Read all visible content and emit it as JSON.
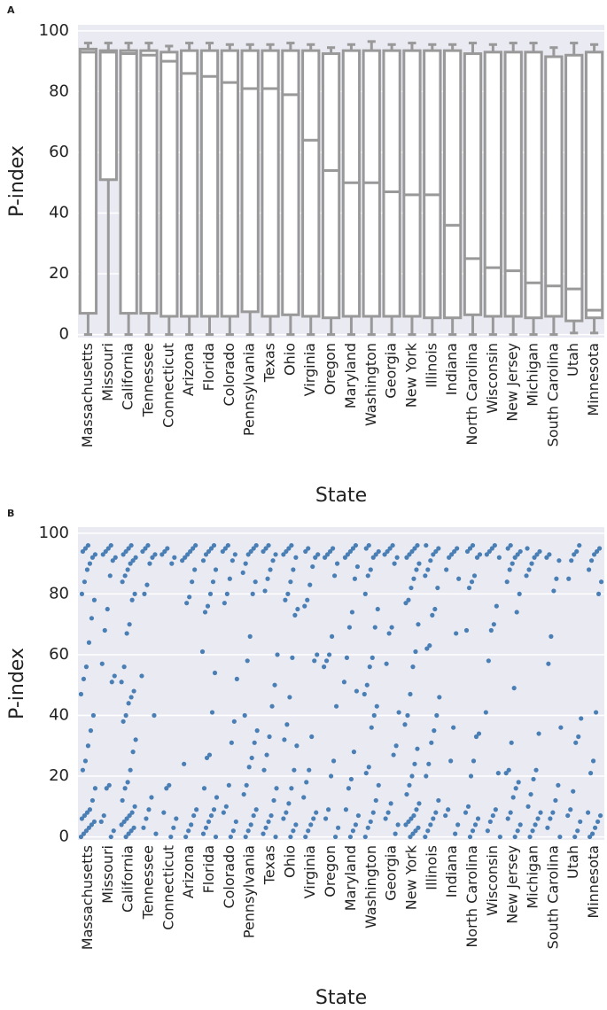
{
  "chart_data": [
    {
      "type": "box",
      "label": "A",
      "ylabel": "P-index",
      "xlabel": "State",
      "categories": [
        "Massachusetts",
        "Missouri",
        "California",
        "Tennessee",
        "Connecticut",
        "Arizona",
        "Florida",
        "Colorado",
        "Pennsylvania",
        "Texas",
        "Ohio",
        "Virginia",
        "Oregon",
        "Maryland",
        "Washington",
        "Georgia",
        "New York",
        "Illinois",
        "Indiana",
        "North Carolina",
        "Wisconsin",
        "New Jersey",
        "Michigan",
        "South Carolina",
        "Utah",
        "Minnesota"
      ],
      "boxes": [
        {
          "low": 0,
          "q1": 7,
          "median": 93,
          "q3": 94,
          "high": 96
        },
        {
          "low": 0,
          "q1": 51,
          "median": 93,
          "q3": 93.5,
          "high": 96
        },
        {
          "low": 0,
          "q1": 7,
          "median": 92.5,
          "q3": 93.5,
          "high": 96
        },
        {
          "low": 0,
          "q1": 7,
          "median": 92,
          "q3": 93.5,
          "high": 96
        },
        {
          "low": 0,
          "q1": 6,
          "median": 90,
          "q3": 93,
          "high": 95
        },
        {
          "low": 0,
          "q1": 6,
          "median": 86,
          "q3": 93.5,
          "high": 96
        },
        {
          "low": 0,
          "q1": 6,
          "median": 85,
          "q3": 93.5,
          "high": 96
        },
        {
          "low": 0,
          "q1": 6,
          "median": 83,
          "q3": 93.5,
          "high": 95.5
        },
        {
          "low": 0,
          "q1": 7.5,
          "median": 81,
          "q3": 93.5,
          "high": 95.5
        },
        {
          "low": 0,
          "q1": 6,
          "median": 81,
          "q3": 93.5,
          "high": 95.5
        },
        {
          "low": 0,
          "q1": 6.5,
          "median": 79,
          "q3": 93.5,
          "high": 96
        },
        {
          "low": 0,
          "q1": 6,
          "median": 64,
          "q3": 93.5,
          "high": 95.5
        },
        {
          "low": 0,
          "q1": 5.5,
          "median": 54,
          "q3": 92.5,
          "high": 94.5
        },
        {
          "low": 0,
          "q1": 6,
          "median": 50,
          "q3": 93.5,
          "high": 95.5
        },
        {
          "low": 0,
          "q1": 6,
          "median": 50,
          "q3": 93.5,
          "high": 96.5
        },
        {
          "low": 0,
          "q1": 6,
          "median": 47,
          "q3": 93.5,
          "high": 95.5
        },
        {
          "low": 0,
          "q1": 6,
          "median": 46,
          "q3": 93.5,
          "high": 96
        },
        {
          "low": 0,
          "q1": 5.5,
          "median": 46,
          "q3": 93.5,
          "high": 95.5
        },
        {
          "low": 0,
          "q1": 5.5,
          "median": 36,
          "q3": 93.5,
          "high": 95.5
        },
        {
          "low": 0,
          "q1": 6.5,
          "median": 25,
          "q3": 92.5,
          "high": 96
        },
        {
          "low": 0,
          "q1": 6,
          "median": 22,
          "q3": 93,
          "high": 95.5
        },
        {
          "low": 0,
          "q1": 6,
          "median": 21,
          "q3": 93,
          "high": 96
        },
        {
          "low": 0,
          "q1": 5.5,
          "median": 17,
          "q3": 93,
          "high": 96
        },
        {
          "low": 0,
          "q1": 6,
          "median": 16,
          "q3": 91.5,
          "high": 94.5
        },
        {
          "low": 0.5,
          "q1": 4.5,
          "median": 15,
          "q3": 92,
          "high": 96
        },
        {
          "low": 0.5,
          "q1": 5.5,
          "median": 8,
          "q3": 93,
          "high": 95.5
        }
      ],
      "ylim": [
        -1,
        102
      ],
      "yticks": [
        0,
        20,
        40,
        60,
        80,
        100
      ],
      "grid": true,
      "color": "#999999"
    },
    {
      "type": "strip",
      "label": "B",
      "ylabel": "P-index",
      "xlabel": "State",
      "categories": [
        "Massachusetts",
        "Missouri",
        "California",
        "Tennessee",
        "Connecticut",
        "Arizona",
        "Florida",
        "Colorado",
        "Pennsylvania",
        "Texas",
        "Ohio",
        "Virginia",
        "Oregon",
        "Maryland",
        "Washington",
        "Georgia",
        "New York",
        "Illinois",
        "Indiana",
        "North Carolina",
        "Wisconsin",
        "New Jersey",
        "Michigan",
        "South Carolina",
        "Utah",
        "Minnesota"
      ],
      "values": [
        [
          0,
          1,
          2,
          3,
          4,
          5,
          6,
          7,
          8,
          9,
          12,
          16,
          22,
          25,
          30,
          35,
          40,
          47,
          52,
          56,
          64,
          72,
          78,
          80,
          84,
          88,
          90,
          92,
          93,
          94,
          95,
          96
        ],
        [
          0,
          2,
          5,
          7,
          16,
          17,
          51,
          53,
          57,
          68,
          75,
          86,
          91,
          92,
          93,
          94,
          95,
          96
        ],
        [
          0,
          1,
          2,
          3,
          4,
          5,
          6,
          7,
          8,
          10,
          12,
          16,
          18,
          22,
          28,
          32,
          38,
          40,
          44,
          46,
          48,
          51,
          56,
          67,
          70,
          78,
          80,
          84,
          86,
          88,
          90,
          91,
          92,
          93,
          94,
          95,
          96
        ],
        [
          1,
          3,
          6,
          9,
          13,
          40,
          53,
          80,
          83,
          90,
          92,
          93,
          94,
          95,
          96
        ],
        [
          0,
          3,
          6,
          8,
          16,
          17,
          90,
          92,
          93,
          94,
          95
        ],
        [
          0,
          2,
          4,
          7,
          9,
          24,
          77,
          79,
          84,
          88,
          91,
          92,
          93,
          94,
          95,
          96
        ],
        [
          0,
          1,
          3,
          5,
          7,
          9,
          13,
          16,
          26,
          27,
          41,
          54,
          61,
          74,
          76,
          80,
          84,
          88,
          91,
          93,
          94,
          95,
          96
        ],
        [
          0,
          2,
          5,
          8,
          10,
          17,
          31,
          38,
          52,
          77,
          80,
          85,
          91,
          93,
          94,
          95,
          96
        ],
        [
          0,
          2,
          4,
          7,
          9,
          14,
          17,
          23,
          26,
          31,
          35,
          40,
          58,
          66,
          80,
          84,
          87,
          90,
          93,
          94,
          95,
          96
        ],
        [
          0,
          1,
          3,
          5,
          7,
          12,
          16,
          22,
          27,
          33,
          43,
          50,
          60,
          81,
          85,
          88,
          91,
          93,
          94,
          95,
          96
        ],
        [
          0,
          2,
          4,
          6,
          8,
          11,
          16,
          22,
          30,
          32,
          37,
          46,
          59,
          73,
          75,
          78,
          80,
          84,
          88,
          92,
          93,
          94,
          95,
          96
        ],
        [
          0,
          2,
          4,
          6,
          8,
          13,
          18,
          22,
          33,
          58,
          60,
          76,
          78,
          83,
          89,
          92,
          93,
          94,
          95
        ],
        [
          0,
          3,
          6,
          9,
          20,
          25,
          43,
          56,
          58,
          60,
          66,
          86,
          90,
          92,
          93,
          94,
          95
        ],
        [
          0,
          2,
          4,
          7,
          9,
          16,
          19,
          28,
          48,
          51,
          59,
          69,
          74,
          85,
          89,
          92,
          93,
          94,
          95,
          96
        ],
        [
          0,
          3,
          5,
          8,
          12,
          17,
          21,
          23,
          36,
          40,
          43,
          47,
          50,
          56,
          59,
          69,
          75,
          80,
          86,
          88,
          92,
          93,
          94,
          95,
          96
        ],
        [
          1,
          4,
          6,
          8,
          11,
          27,
          30,
          41,
          57,
          67,
          69,
          90,
          92,
          93,
          94,
          95,
          96
        ],
        [
          0,
          1,
          2,
          3,
          4,
          5,
          6,
          7,
          9,
          11,
          14,
          17,
          20,
          24,
          29,
          37,
          40,
          47,
          56,
          61,
          70,
          77,
          78,
          82,
          85,
          88,
          90,
          92,
          93,
          94,
          95,
          96
        ],
        [
          0,
          2,
          4,
          6,
          8,
          12,
          20,
          24,
          31,
          35,
          40,
          46,
          62,
          63,
          73,
          75,
          82,
          86,
          88,
          91,
          93,
          94,
          95,
          96
        ],
        [
          1,
          4,
          7,
          9,
          25,
          36,
          67,
          85,
          88,
          92,
          93,
          94,
          95
        ],
        [
          0,
          2,
          4,
          6,
          8,
          10,
          20,
          25,
          33,
          34,
          68,
          82,
          84,
          86,
          92,
          93,
          94,
          95,
          96
        ],
        [
          0,
          2,
          5,
          7,
          9,
          21,
          41,
          58,
          68,
          70,
          76,
          92,
          93,
          94,
          95,
          96
        ],
        [
          0,
          2,
          4,
          6,
          8,
          13,
          16,
          18,
          21,
          22,
          31,
          49,
          74,
          80,
          84,
          88,
          90,
          92,
          93,
          94,
          95,
          96
        ],
        [
          0,
          2,
          4,
          6,
          8,
          10,
          14,
          19,
          22,
          34,
          86,
          88,
          90,
          92,
          93,
          94,
          95
        ],
        [
          0,
          3,
          6,
          8,
          12,
          17,
          36,
          57,
          66,
          81,
          85,
          91,
          92,
          93
        ],
        [
          0,
          2,
          5,
          7,
          9,
          15,
          31,
          33,
          39,
          85,
          91,
          93,
          94,
          96
        ],
        [
          0,
          1,
          3,
          5,
          7,
          8,
          21,
          25,
          41,
          80,
          84,
          88,
          91,
          93,
          94,
          95
        ]
      ],
      "ylim": [
        -1,
        102
      ],
      "yticks": [
        0,
        20,
        40,
        60,
        80,
        100
      ],
      "grid": true,
      "color": "#4a7fb5"
    }
  ]
}
